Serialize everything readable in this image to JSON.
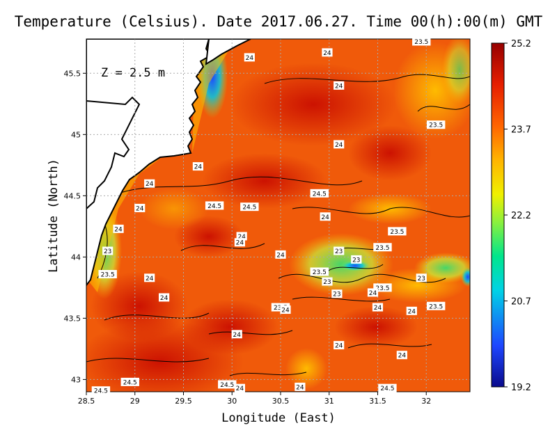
{
  "title": "Temperature (Celsius). Date 2017.06.27. Time 00(h):00(m)  GMT",
  "depth_label": "Z = 2.5 m",
  "xaxis": {
    "label": "Longitude (East)",
    "ticks": [
      "28.5",
      "29",
      "29.5",
      "30",
      "30.5",
      "31",
      "31.5",
      "32"
    ],
    "values": [
      28.5,
      29,
      29.5,
      30,
      30.5,
      31,
      31.5,
      32
    ],
    "range": [
      28.5,
      32.45
    ]
  },
  "yaxis": {
    "label": "Latitude (North)",
    "ticks": [
      "43",
      "43.5",
      "44",
      "44.5",
      "45",
      "45.5"
    ],
    "values": [
      43,
      43.5,
      44,
      44.5,
      45,
      45.5
    ],
    "range": [
      42.9,
      45.78
    ]
  },
  "colorbar": {
    "ticks": [
      "25.2",
      "23.7",
      "22.2",
      "20.7",
      "19.2"
    ],
    "values": [
      25.2,
      23.7,
      22.2,
      20.7,
      19.2
    ],
    "range": [
      19.2,
      25.2
    ]
  },
  "contour_labels": [
    {
      "text": "23.5",
      "lon": 31.95,
      "lat": 45.76
    },
    {
      "text": "24",
      "lon": 30.98,
      "lat": 45.67
    },
    {
      "text": "24",
      "lon": 30.18,
      "lat": 45.63
    },
    {
      "text": "24",
      "lon": 31.1,
      "lat": 45.4
    },
    {
      "text": "23.5",
      "lon": 32.1,
      "lat": 45.08
    },
    {
      "text": "24",
      "lon": 31.1,
      "lat": 44.92
    },
    {
      "text": "24",
      "lon": 29.65,
      "lat": 44.74
    },
    {
      "text": "24",
      "lon": 29.15,
      "lat": 44.6
    },
    {
      "text": "24.5",
      "lon": 30.9,
      "lat": 44.52
    },
    {
      "text": "24",
      "lon": 29.05,
      "lat": 44.4
    },
    {
      "text": "24.5",
      "lon": 29.82,
      "lat": 44.42
    },
    {
      "text": "24.5",
      "lon": 30.18,
      "lat": 44.41
    },
    {
      "text": "24",
      "lon": 30.96,
      "lat": 44.33
    },
    {
      "text": "24",
      "lon": 28.83,
      "lat": 44.23
    },
    {
      "text": "23.5",
      "lon": 31.7,
      "lat": 44.21
    },
    {
      "text": "24",
      "lon": 30.1,
      "lat": 44.17
    },
    {
      "text": "23.5",
      "lon": 31.55,
      "lat": 44.08
    },
    {
      "text": "24",
      "lon": 30.08,
      "lat": 44.12
    },
    {
      "text": "23",
      "lon": 28.72,
      "lat": 44.05
    },
    {
      "text": "23",
      "lon": 31.1,
      "lat": 44.05
    },
    {
      "text": "24",
      "lon": 30.5,
      "lat": 44.02
    },
    {
      "text": "23",
      "lon": 31.28,
      "lat": 43.98
    },
    {
      "text": "23.5",
      "lon": 28.72,
      "lat": 43.86
    },
    {
      "text": "23.5",
      "lon": 30.9,
      "lat": 43.88
    },
    {
      "text": "24",
      "lon": 29.15,
      "lat": 43.83
    },
    {
      "text": "23",
      "lon": 31.95,
      "lat": 43.83
    },
    {
      "text": "23",
      "lon": 30.98,
      "lat": 43.8
    },
    {
      "text": "23.5",
      "lon": 31.55,
      "lat": 43.75
    },
    {
      "text": "23",
      "lon": 31.08,
      "lat": 43.7
    },
    {
      "text": "24",
      "lon": 31.45,
      "lat": 43.71
    },
    {
      "text": "24",
      "lon": 29.3,
      "lat": 43.67
    },
    {
      "text": "23.5",
      "lon": 32.1,
      "lat": 43.6
    },
    {
      "text": "24",
      "lon": 31.5,
      "lat": 43.59
    },
    {
      "text": "23.5",
      "lon": 30.5,
      "lat": 43.59
    },
    {
      "text": "24",
      "lon": 30.55,
      "lat": 43.57
    },
    {
      "text": "24",
      "lon": 31.85,
      "lat": 43.56
    },
    {
      "text": "24",
      "lon": 30.05,
      "lat": 43.37
    },
    {
      "text": "24",
      "lon": 31.1,
      "lat": 43.28
    },
    {
      "text": "24",
      "lon": 31.75,
      "lat": 43.2
    },
    {
      "text": "24.5",
      "lon": 28.95,
      "lat": 42.98
    },
    {
      "text": "24.5",
      "lon": 29.95,
      "lat": 42.96
    },
    {
      "text": "24",
      "lon": 30.08,
      "lat": 42.93
    },
    {
      "text": "24",
      "lon": 30.7,
      "lat": 42.94
    },
    {
      "text": "24.5",
      "lon": 31.6,
      "lat": 42.93
    },
    {
      "text": "24.5",
      "lon": 28.65,
      "lat": 42.91
    }
  ],
  "colors": {
    "land": "#ffffff",
    "coast": "#000000",
    "grid": "#aaaaaa",
    "scale": [
      "#0a0a8c",
      "#1e46ff",
      "#00d2e6",
      "#00e68c",
      "#8cf03c",
      "#f0f000",
      "#ffb400",
      "#ff6400",
      "#e61e00",
      "#960000"
    ]
  }
}
